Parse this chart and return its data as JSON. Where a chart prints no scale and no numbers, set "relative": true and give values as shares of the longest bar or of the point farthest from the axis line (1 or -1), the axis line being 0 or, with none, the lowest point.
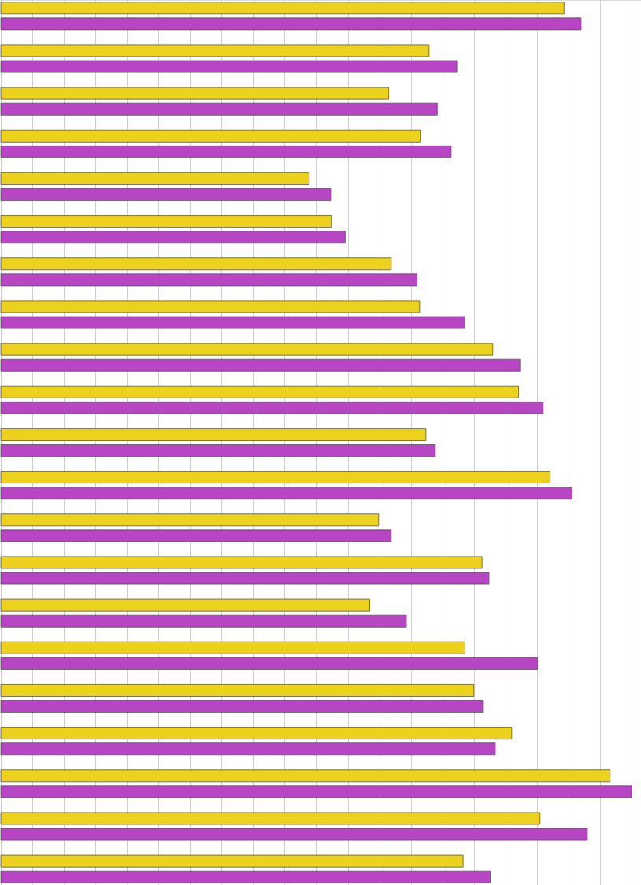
{
  "chart_data": {
    "type": "bar",
    "orientation": "horizontal",
    "relative": true,
    "grid": "x",
    "categories": [
      null,
      null,
      null,
      null,
      null,
      null,
      null,
      null,
      null,
      null,
      null,
      null,
      null,
      null,
      null,
      null,
      null,
      null,
      null,
      null,
      null
    ],
    "series": [
      {
        "color": "#ecd21c",
        "values": [
          0.893,
          0.679,
          0.615,
          0.665,
          0.489,
          0.524,
          0.619,
          0.664,
          0.78,
          0.821,
          0.674,
          0.871,
          0.599,
          0.763,
          0.585,
          0.736,
          0.75,
          0.81,
          0.966,
          0.855,
          0.733
        ]
      },
      {
        "color": "#b845c4",
        "values": [
          0.92,
          0.723,
          0.692,
          0.714,
          0.523,
          0.546,
          0.66,
          0.736,
          0.823,
          0.86,
          0.689,
          0.906,
          0.619,
          0.774,
          0.643,
          0.851,
          0.764,
          0.784,
          1,
          0.93,
          0.776
        ]
      }
    ]
  }
}
